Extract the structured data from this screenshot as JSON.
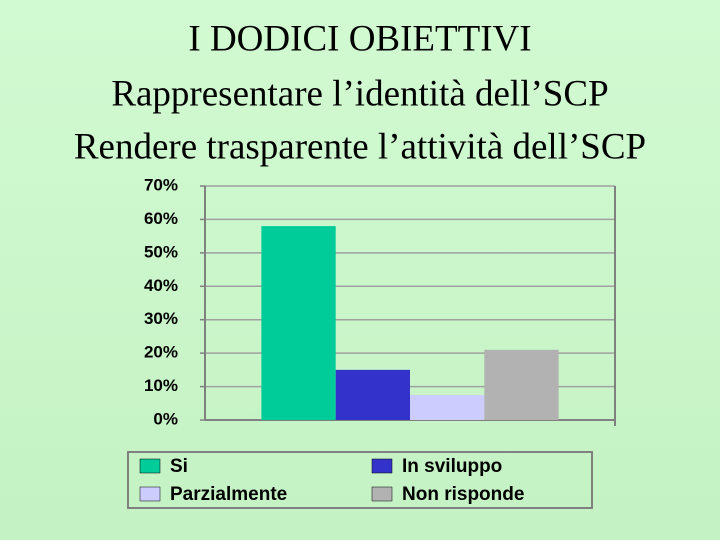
{
  "chart_data": {
    "type": "bar",
    "title": "I DODICI OBIETTIVI",
    "subtitle": [
      "Rappresentare l’identità dell’SCP",
      "Rendere trasparente l’attività dell’SCP"
    ],
    "categories": [
      null
    ],
    "series": [
      {
        "name": "Si",
        "color": "#00cc99",
        "values": [
          58
        ]
      },
      {
        "name": "In sviluppo",
        "color": "#3333cc",
        "values": [
          15
        ]
      },
      {
        "name": "Parzialmente",
        "color": "#ccccff",
        "values": [
          7.5
        ]
      },
      {
        "name": "Non risponde",
        "color": "#b2b2b2",
        "values": [
          21
        ]
      }
    ],
    "ylim": [
      0,
      70
    ],
    "yticks": [
      {
        "value": 0,
        "label": "0%"
      },
      {
        "value": 10,
        "label": "10%"
      },
      {
        "value": 20,
        "label": "20%"
      },
      {
        "value": 30,
        "label": "30%"
      },
      {
        "value": 40,
        "label": "40%"
      },
      {
        "value": 50,
        "label": "50%"
      },
      {
        "value": 60,
        "label": "60%"
      },
      {
        "value": 70,
        "label": "70%"
      }
    ],
    "grid": true,
    "legend": "bottom"
  }
}
